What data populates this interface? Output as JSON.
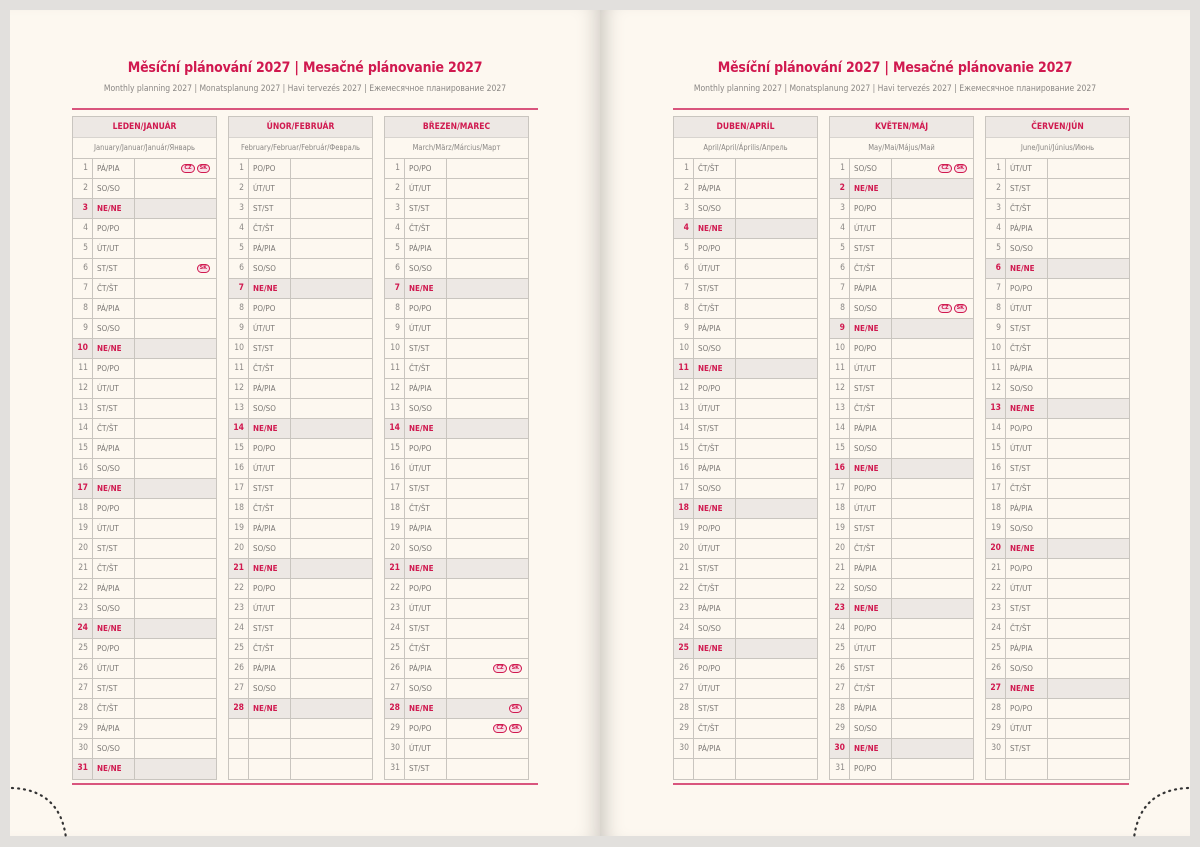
{
  "left_page": {
    "title": "Měsíční plánování 2027 | Mesačné plánovanie 2027",
    "subtitle": "Monthly planning 2027 | Monatsplanung 2027 | Havi tervezés 2027 | Ежемесячное планирование 2027",
    "months": [
      {
        "name": "LEDEN/JANUÁR",
        "sub": "January/Januar/Január/Январь",
        "days": [
          "PÁ/PIA",
          "SO/SO",
          "NE/NE",
          "PO/PO",
          "ÚT/UT",
          "ST/ST",
          "ČT/ŠT",
          "PÁ/PIA",
          "SO/SO",
          "NE/NE",
          "PO/PO",
          "ÚT/UT",
          "ST/ST",
          "ČT/ŠT",
          "PÁ/PIA",
          "SO/SO",
          "NE/NE",
          "PO/PO",
          "ÚT/UT",
          "ST/ST",
          "ČT/ŠT",
          "PÁ/PIA",
          "SO/SO",
          "NE/NE",
          "PO/PO",
          "ÚT/UT",
          "ST/ST",
          "ČT/ŠT",
          "PÁ/PIA",
          "SO/SO",
          "NE/NE"
        ],
        "holidays": {
          "1": [
            "CZ",
            "SK"
          ],
          "6": [
            "SK"
          ]
        }
      },
      {
        "name": "ÚNOR/FEBRUÁR",
        "sub": "February/Februar/Február/Февраль",
        "days": [
          "PO/PO",
          "ÚT/UT",
          "ST/ST",
          "ČT/ŠT",
          "PÁ/PIA",
          "SO/SO",
          "NE/NE",
          "PO/PO",
          "ÚT/UT",
          "ST/ST",
          "ČT/ŠT",
          "PÁ/PIA",
          "SO/SO",
          "NE/NE",
          "PO/PO",
          "ÚT/UT",
          "ST/ST",
          "ČT/ŠT",
          "PÁ/PIA",
          "SO/SO",
          "NE/NE",
          "PO/PO",
          "ÚT/UT",
          "ST/ST",
          "ČT/ŠT",
          "PÁ/PIA",
          "SO/SO",
          "NE/NE"
        ],
        "holidays": {}
      },
      {
        "name": "BŘEZEN/MAREC",
        "sub": "March/März/Március/Март",
        "days": [
          "PO/PO",
          "ÚT/UT",
          "ST/ST",
          "ČT/ŠT",
          "PÁ/PIA",
          "SO/SO",
          "NE/NE",
          "PO/PO",
          "ÚT/UT",
          "ST/ST",
          "ČT/ŠT",
          "PÁ/PIA",
          "SO/SO",
          "NE/NE",
          "PO/PO",
          "ÚT/UT",
          "ST/ST",
          "ČT/ŠT",
          "PÁ/PIA",
          "SO/SO",
          "NE/NE",
          "PO/PO",
          "ÚT/UT",
          "ST/ST",
          "ČT/ŠT",
          "PÁ/PIA",
          "SO/SO",
          "NE/NE",
          "PO/PO",
          "ÚT/UT",
          "ST/ST"
        ],
        "holidays": {
          "26": [
            "CZ",
            "SK"
          ],
          "28": [
            "SK"
          ],
          "29": [
            "CZ",
            "SK"
          ]
        }
      }
    ]
  },
  "right_page": {
    "title": "Měsíční plánování 2027 | Mesačné plánovanie 2027",
    "subtitle": "Monthly planning 2027 | Monatsplanung 2027 | Havi tervezés 2027 | Ежемесячное планирование 2027",
    "months": [
      {
        "name": "DUBEN/APRÍL",
        "sub": "April/April/Április/Апрель",
        "days": [
          "ČT/ŠT",
          "PÁ/PIA",
          "SO/SO",
          "NE/NE",
          "PO/PO",
          "ÚT/UT",
          "ST/ST",
          "ČT/ŠT",
          "PÁ/PIA",
          "SO/SO",
          "NE/NE",
          "PO/PO",
          "ÚT/UT",
          "ST/ST",
          "ČT/ŠT",
          "PÁ/PIA",
          "SO/SO",
          "NE/NE",
          "PO/PO",
          "ÚT/UT",
          "ST/ST",
          "ČT/ŠT",
          "PÁ/PIA",
          "SO/SO",
          "NE/NE",
          "PO/PO",
          "ÚT/UT",
          "ST/ST",
          "ČT/ŠT",
          "PÁ/PIA"
        ],
        "holidays": {}
      },
      {
        "name": "KVĚTEN/MÁJ",
        "sub": "May/Mai/Május/Май",
        "days": [
          "SO/SO",
          "NE/NE",
          "PO/PO",
          "ÚT/UT",
          "ST/ST",
          "ČT/ŠT",
          "PÁ/PIA",
          "SO/SO",
          "NE/NE",
          "PO/PO",
          "ÚT/UT",
          "ST/ST",
          "ČT/ŠT",
          "PÁ/PIA",
          "SO/SO",
          "NE/NE",
          "PO/PO",
          "ÚT/UT",
          "ST/ST",
          "ČT/ŠT",
          "PÁ/PIA",
          "SO/SO",
          "NE/NE",
          "PO/PO",
          "ÚT/UT",
          "ST/ST",
          "ČT/ŠT",
          "PÁ/PIA",
          "SO/SO",
          "NE/NE",
          "PO/PO"
        ],
        "holidays": {
          "1": [
            "CZ",
            "SK"
          ],
          "8": [
            "CZ",
            "SK"
          ]
        }
      },
      {
        "name": "ČERVEN/JÚN",
        "sub": "June/Juni/Június/Июнь",
        "days": [
          "ÚT/UT",
          "ST/ST",
          "ČT/ŠT",
          "PÁ/PIA",
          "SO/SO",
          "NE/NE",
          "PO/PO",
          "ÚT/UT",
          "ST/ST",
          "ČT/ŠT",
          "PÁ/PIA",
          "SO/SO",
          "NE/NE",
          "PO/PO",
          "ÚT/UT",
          "ST/ST",
          "ČT/ŠT",
          "PÁ/PIA",
          "SO/SO",
          "NE/NE",
          "PO/PO",
          "ÚT/UT",
          "ST/ST",
          "ČT/ŠT",
          "PÁ/PIA",
          "SO/SO",
          "NE/NE",
          "PO/PO",
          "ÚT/UT",
          "ST/ST"
        ],
        "holidays": {}
      }
    ]
  },
  "sunday_label": "NE/NE",
  "colors": {
    "accent": "#d0194f",
    "page": "#fdf8f0",
    "shade": "#ede8e4",
    "grid": "#c9c5bf"
  }
}
